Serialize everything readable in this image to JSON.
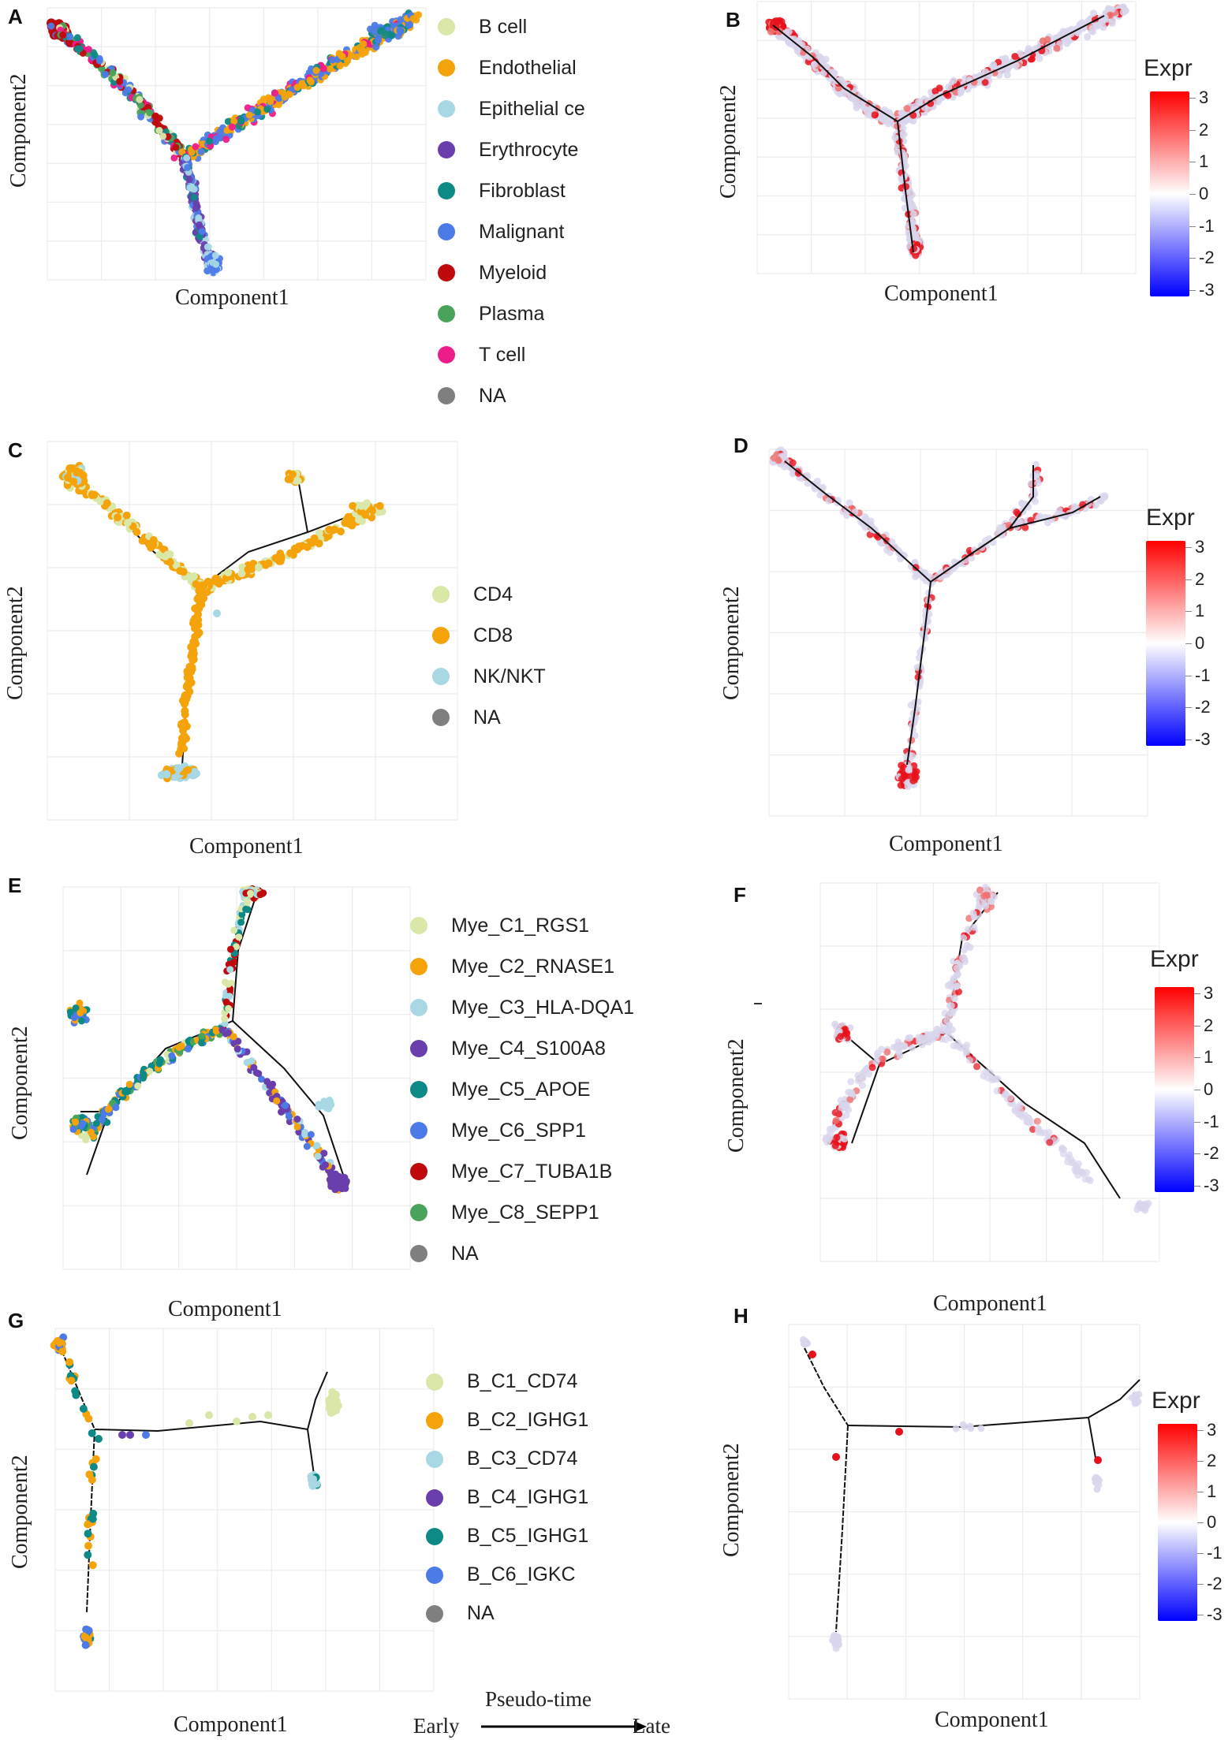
{
  "panels": [
    {
      "letter": "A",
      "xlabel": "Component1",
      "ylabel": "Component2",
      "legend": [
        {
          "label": "B cell",
          "color": "#d9e7a8"
        },
        {
          "label": "Endothelial",
          "color": "#f5a30a"
        },
        {
          "label": "Epithelial ce",
          "color": "#a8d8e4"
        },
        {
          "label": "Erythrocyte",
          "color": "#6a3fad"
        },
        {
          "label": "Fibroblast",
          "color": "#0e8a86"
        },
        {
          "label": "Malignant",
          "color": "#4c7be8"
        },
        {
          "label": "Myeloid",
          "color": "#c0090d"
        },
        {
          "label": "Plasma",
          "color": "#4aa35a"
        },
        {
          "label": "T cell",
          "color": "#ee1c8a"
        },
        {
          "label": "NA",
          "color": "#7f7f7f"
        }
      ]
    },
    {
      "letter": "B",
      "xlabel": "Component1",
      "ylabel": "Component2",
      "colorbar": true
    },
    {
      "letter": "C",
      "xlabel": "Component1",
      "ylabel": "Component2",
      "legend": [
        {
          "label": "CD4",
          "color": "#d9e7a8"
        },
        {
          "label": "CD8",
          "color": "#f5a30a"
        },
        {
          "label": "NK/NKT",
          "color": "#a8d8e4"
        },
        {
          "label": "NA",
          "color": "#7f7f7f"
        }
      ]
    },
    {
      "letter": "D",
      "xlabel": "Component1",
      "ylabel": "Component2",
      "colorbar": true
    },
    {
      "letter": "E",
      "xlabel": "Component1",
      "ylabel": "Component2",
      "legend": [
        {
          "label": "Mye_C1_RGS1",
          "color": "#d9e7a8"
        },
        {
          "label": "Mye_C2_RNASE1",
          "color": "#f5a30a"
        },
        {
          "label": "Mye_C3_HLA-DQA1",
          "color": "#a8d8e4"
        },
        {
          "label": "Mye_C4_S100A8",
          "color": "#6a3fad"
        },
        {
          "label": "Mye_C5_APOE",
          "color": "#0e8a86"
        },
        {
          "label": "Mye_C6_SPP1",
          "color": "#4c7be8"
        },
        {
          "label": "Mye_C7_TUBA1B",
          "color": "#c0090d"
        },
        {
          "label": "Mye_C8_SEPP1",
          "color": "#4aa35a"
        },
        {
          "label": "NA",
          "color": "#7f7f7f"
        }
      ]
    },
    {
      "letter": "F",
      "xlabel": "Component1",
      "ylabel": "Component2",
      "colorbar": true
    },
    {
      "letter": "G",
      "xlabel": "Component1",
      "ylabel": "Component2",
      "legend": [
        {
          "label": "B_C1_CD74",
          "color": "#d9e7a8"
        },
        {
          "label": "B_C2_IGHG1",
          "color": "#f5a30a"
        },
        {
          "label": "B_C3_CD74",
          "color": "#a8d8e4"
        },
        {
          "label": "B_C4_IGHG1",
          "color": "#6a3fad"
        },
        {
          "label": "B_C5_IGHG1",
          "color": "#0e8a86"
        },
        {
          "label": "B_C6_IGKC",
          "color": "#4c7be8"
        },
        {
          "label": "NA",
          "color": "#7f7f7f"
        }
      ]
    },
    {
      "letter": "H",
      "xlabel": "Component1",
      "ylabel": "Component2",
      "colorbar": true
    }
  ],
  "colorbar": {
    "title": "Expr",
    "ticks": [
      "3",
      "2",
      "1",
      "0",
      "-1",
      "-2",
      "-3"
    ],
    "colors": {
      "high": "#ff0000",
      "mid": "#ffffff",
      "low": "#0000ff"
    }
  },
  "pseudotime": {
    "title": "Pseudo-time",
    "early": "Early",
    "late": "Late"
  },
  "chart_data": [
    {
      "type": "scatter",
      "panel": "A",
      "title": "",
      "xlabel": "Component1",
      "ylabel": "Component2",
      "series": [
        {
          "name": "B cell"
        },
        {
          "name": "Endothelial"
        },
        {
          "name": "Epithelial ce"
        },
        {
          "name": "Erythrocyte"
        },
        {
          "name": "Fibroblast"
        },
        {
          "name": "Malignant"
        },
        {
          "name": "Myeloid"
        },
        {
          "name": "Plasma"
        },
        {
          "name": "T cell"
        },
        {
          "name": "NA"
        }
      ]
    },
    {
      "type": "scatter",
      "panel": "B",
      "title": "",
      "xlabel": "Component1",
      "ylabel": "Component2",
      "color_scale": {
        "title": "Expr",
        "range": [
          -3,
          3
        ]
      }
    },
    {
      "type": "scatter",
      "panel": "C",
      "title": "",
      "xlabel": "Component1",
      "ylabel": "Component2",
      "series": [
        {
          "name": "CD4"
        },
        {
          "name": "CD8"
        },
        {
          "name": "NK/NKT"
        },
        {
          "name": "NA"
        }
      ]
    },
    {
      "type": "scatter",
      "panel": "D",
      "title": "",
      "xlabel": "Component1",
      "ylabel": "Component2",
      "color_scale": {
        "title": "Expr",
        "range": [
          -3,
          3
        ]
      }
    },
    {
      "type": "scatter",
      "panel": "E",
      "title": "",
      "xlabel": "Component1",
      "ylabel": "Component2",
      "series": [
        {
          "name": "Mye_C1_RGS1"
        },
        {
          "name": "Mye_C2_RNASE1"
        },
        {
          "name": "Mye_C3_HLA-DQA1"
        },
        {
          "name": "Mye_C4_S100A8"
        },
        {
          "name": "Mye_C5_APOE"
        },
        {
          "name": "Mye_C6_SPP1"
        },
        {
          "name": "Mye_C7_TUBA1B"
        },
        {
          "name": "Mye_C8_SEPP1"
        },
        {
          "name": "NA"
        }
      ]
    },
    {
      "type": "scatter",
      "panel": "F",
      "title": "",
      "xlabel": "Component1",
      "ylabel": "Component2",
      "color_scale": {
        "title": "Expr",
        "range": [
          -3,
          3
        ]
      }
    },
    {
      "type": "scatter",
      "panel": "G",
      "title": "",
      "xlabel": "Component1",
      "ylabel": "Component2",
      "series": [
        {
          "name": "B_C1_CD74"
        },
        {
          "name": "B_C2_IGHG1"
        },
        {
          "name": "B_C3_CD74"
        },
        {
          "name": "B_C4_IGHG1"
        },
        {
          "name": "B_C5_IGHG1"
        },
        {
          "name": "B_C6_IGKC"
        },
        {
          "name": "NA"
        }
      ]
    },
    {
      "type": "scatter",
      "panel": "H",
      "title": "",
      "xlabel": "Component1",
      "ylabel": "Component2",
      "color_scale": {
        "title": "Expr",
        "range": [
          -3,
          3
        ]
      }
    }
  ]
}
